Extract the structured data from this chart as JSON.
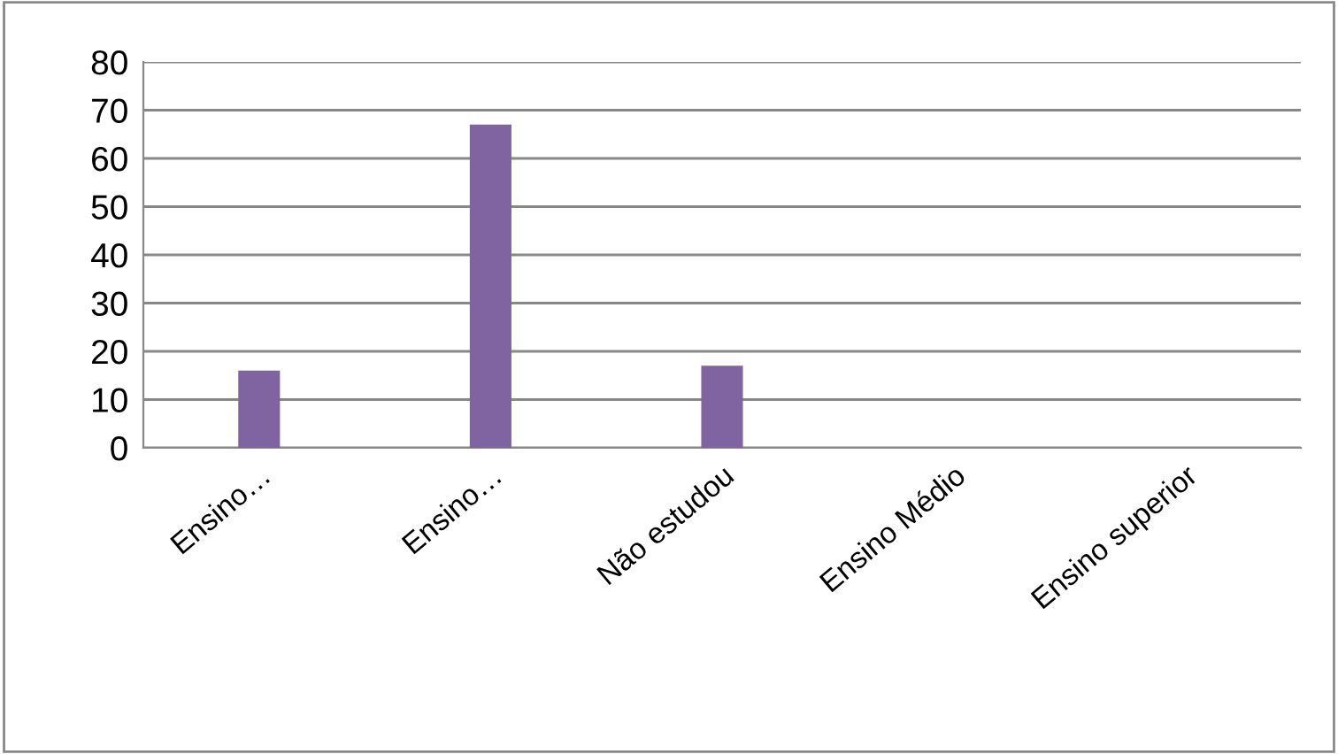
{
  "chart_data": {
    "type": "bar",
    "categories": [
      "Ensino…",
      "Ensino…",
      "Não estudou",
      "Ensino Médio",
      "Ensino superior"
    ],
    "values": [
      16,
      67,
      17,
      0,
      0
    ],
    "color": "#8064a2",
    "ylim": [
      0,
      80
    ],
    "yticks": [
      0,
      10,
      20,
      30,
      40,
      50,
      60,
      70,
      80
    ],
    "grid": "y",
    "legend": false
  }
}
